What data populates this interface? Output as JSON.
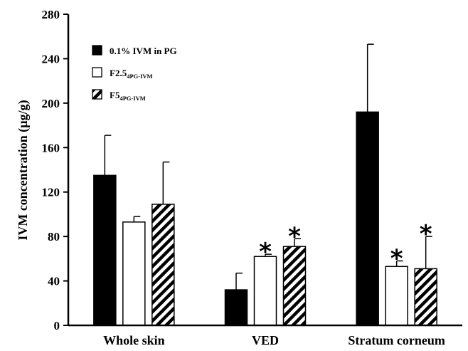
{
  "chart_data": {
    "type": "bar",
    "title": "",
    "xlabel": "",
    "ylabel": "IVM concentration (µg/g)",
    "ylim": [
      0,
      280
    ],
    "yticks": [
      0,
      40,
      80,
      120,
      160,
      200,
      240,
      280
    ],
    "categories": [
      "Whole skin",
      "VED",
      "Stratum corneum"
    ],
    "legend_position": "top-left",
    "series": [
      {
        "name": "0.1% IVM in PG",
        "name_main": "0.1% IVM in PG",
        "name_sub": "",
        "fill": "solid",
        "color": "#000000",
        "values": [
          135,
          32,
          192
        ],
        "errors": [
          36,
          15,
          61
        ],
        "significance": [
          "",
          "",
          ""
        ]
      },
      {
        "name": "F2.54PG-IVM",
        "name_main": "F2.5",
        "name_sub": "4PG-IVM",
        "fill": "open",
        "color": "#ffffff",
        "values": [
          93,
          62,
          53
        ],
        "errors": [
          5,
          2,
          5
        ],
        "significance": [
          "",
          "*",
          "*"
        ]
      },
      {
        "name": "F54PG-IVM",
        "name_main": "F5",
        "name_sub": "4PG-IVM",
        "fill": "hatched",
        "color": "#000000",
        "values": [
          109,
          71,
          51
        ],
        "errors": [
          38,
          7,
          29
        ],
        "significance": [
          "",
          "*",
          "*"
        ]
      }
    ]
  }
}
